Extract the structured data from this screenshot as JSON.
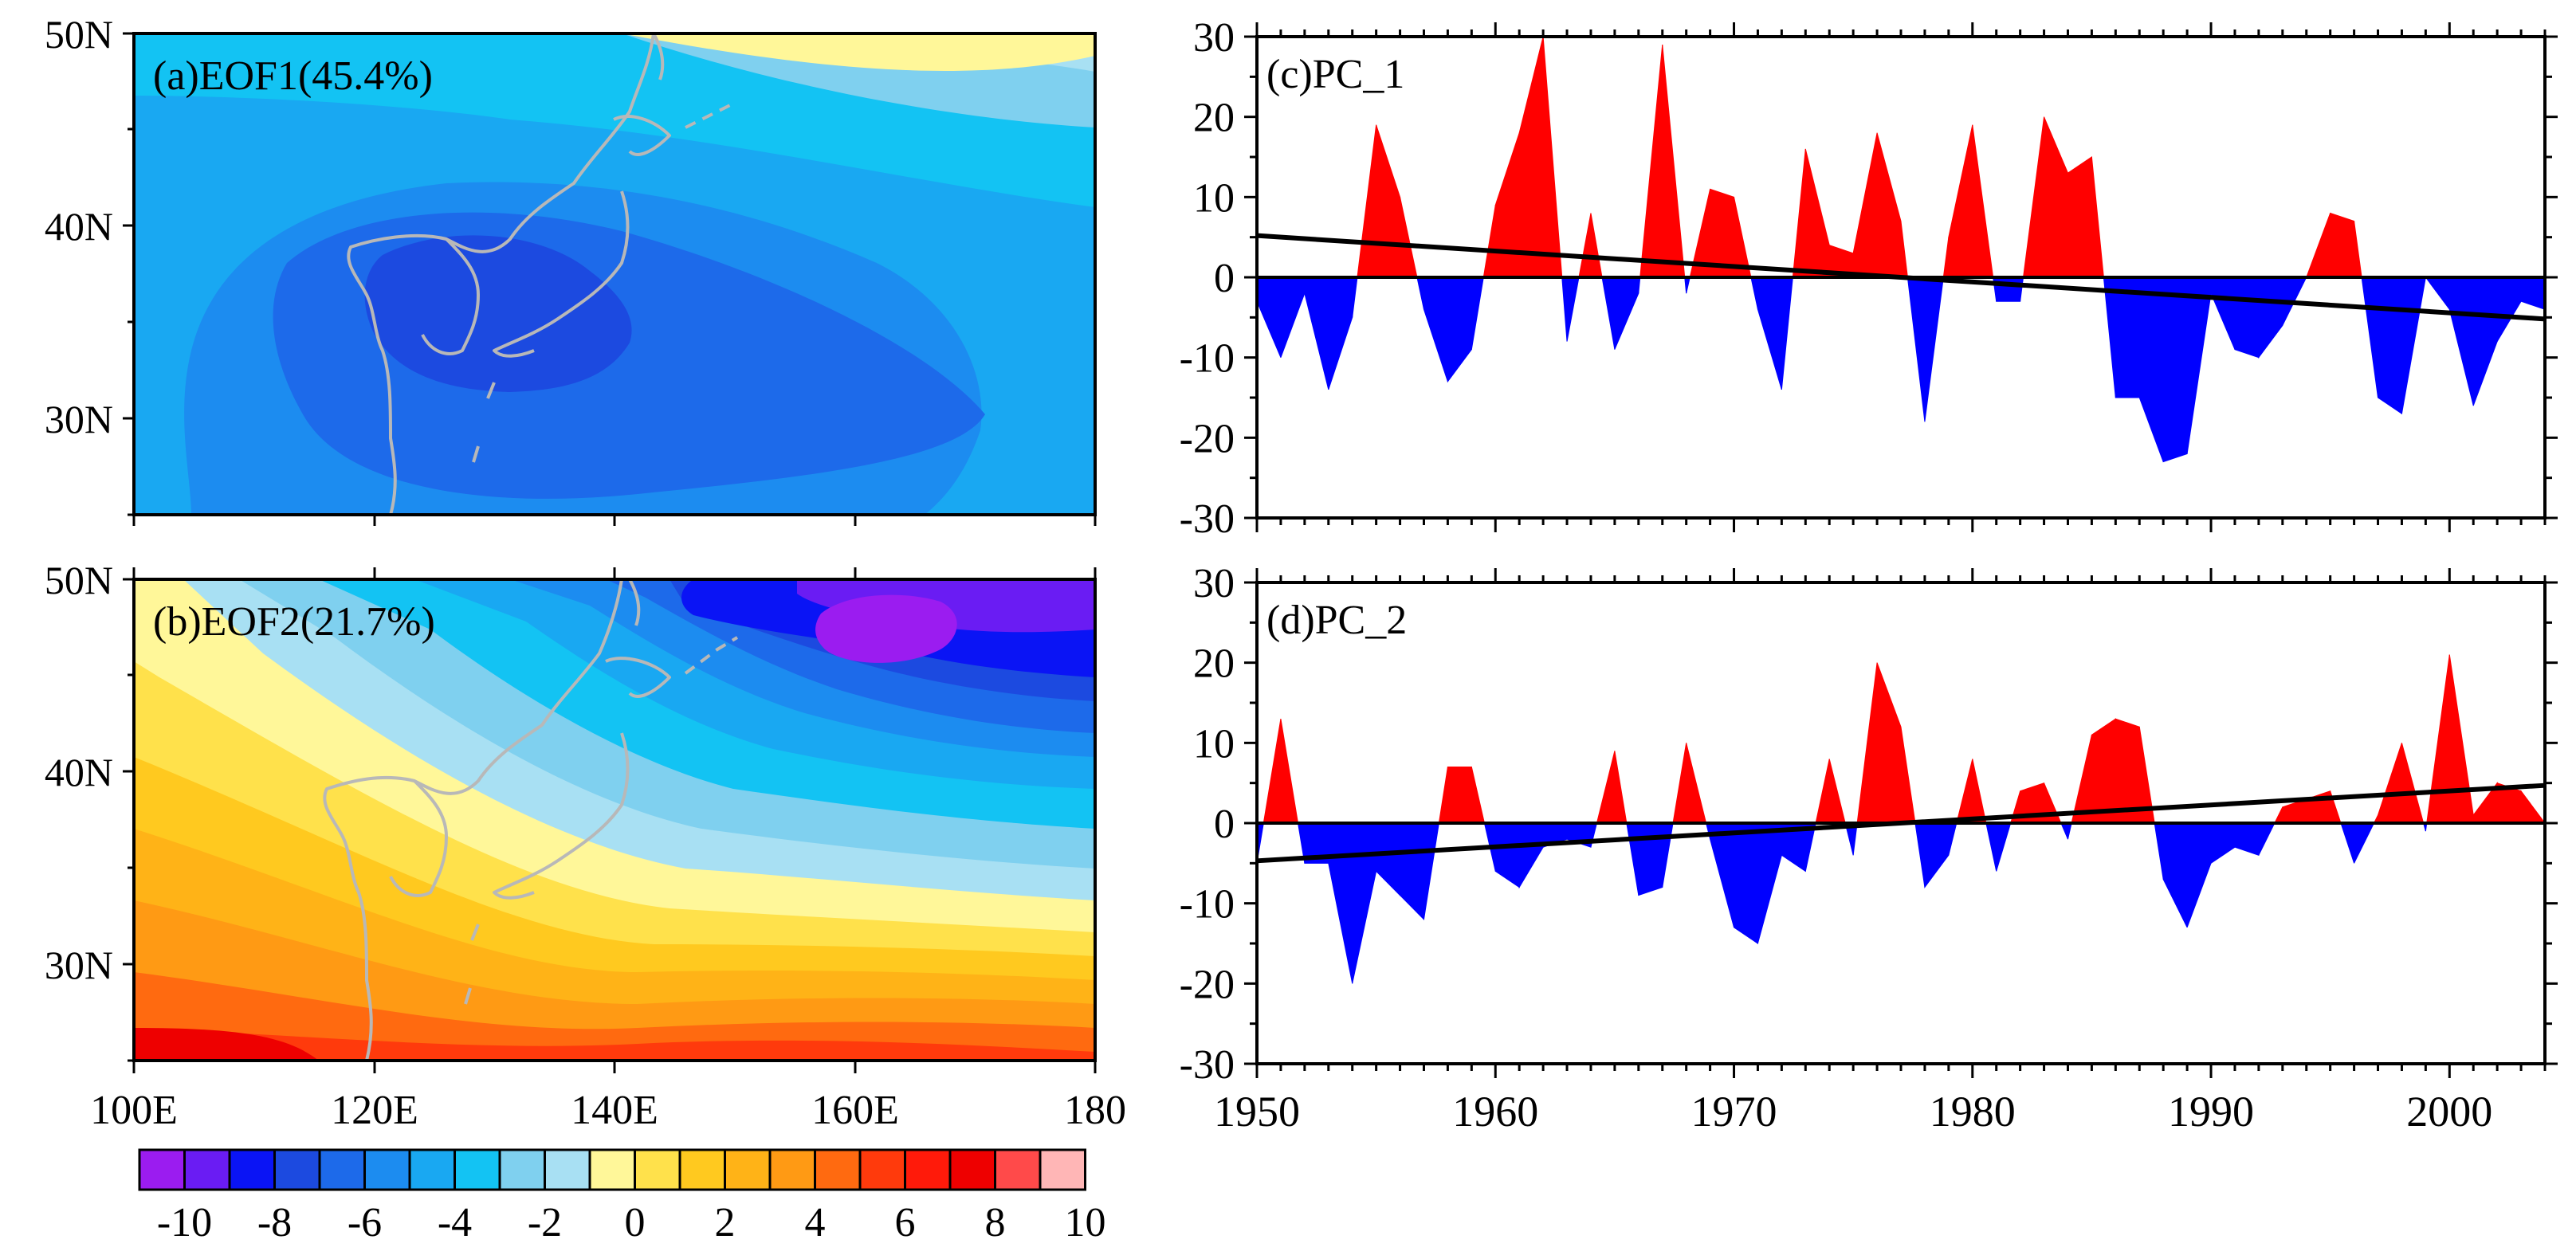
{
  "figure": {
    "colors": {
      "positive": "#ff0000",
      "negative": "#0000ff",
      "trend": "#000000",
      "coast": "#b8b8b8"
    },
    "colorbar": {
      "colors": [
        "#9b1cf0",
        "#6a1cf3",
        "#0a14f5",
        "#1c4ae0",
        "#1d6aea",
        "#1c8cf0",
        "#19a8f2",
        "#13c3f3",
        "#7fd0ef",
        "#a8e0f3",
        "#fff799",
        "#ffe14b",
        "#ffc91f",
        "#ffb317",
        "#ff9a14",
        "#ff6a10",
        "#ff3a0c",
        "#ff1a0a",
        "#ee0000",
        "#ff4a4a",
        "#ffb6b6"
      ],
      "labels": [
        "-10",
        "-8",
        "-6",
        "-4",
        "-2",
        "0",
        "2",
        "4",
        "6",
        "8",
        "10"
      ]
    },
    "maps": [
      {
        "id": "eof1",
        "title": "(a)EOF1(45.4%)",
        "lat_labels": [
          "50N",
          "40N",
          "30N"
        ],
        "lon_labels": [],
        "levels": [
          -5,
          -4,
          -3,
          -2,
          -1,
          0,
          1
        ]
      },
      {
        "id": "eof2",
        "title": "(b)EOF2(21.7%)",
        "lat_labels": [
          "50N",
          "40N",
          "30N"
        ],
        "lon_labels": [
          "100E",
          "120E",
          "140E",
          "160E",
          "180"
        ],
        "levels": [
          -10,
          -9,
          -8,
          -7,
          -6,
          -5,
          -4,
          -3,
          -2,
          -1,
          0,
          1,
          2,
          3,
          4,
          5,
          6,
          7
        ]
      }
    ]
  },
  "chart_data": [
    {
      "type": "area",
      "title": "(c)PC_1",
      "ylim": [
        -30,
        30
      ],
      "yticks": [
        "30",
        "20",
        "10",
        "0",
        "-10",
        "-20",
        "-30"
      ],
      "xlim": [
        1950,
        2004
      ],
      "xticks": [],
      "years": [
        1950,
        1951,
        1952,
        1953,
        1954,
        1955,
        1956,
        1957,
        1958,
        1959,
        1960,
        1961,
        1962,
        1963,
        1964,
        1965,
        1966,
        1967,
        1968,
        1969,
        1970,
        1971,
        1972,
        1973,
        1974,
        1975,
        1976,
        1977,
        1978,
        1979,
        1980,
        1981,
        1982,
        1983,
        1984,
        1985,
        1986,
        1987,
        1988,
        1989,
        1990,
        1991,
        1992,
        1993,
        1994,
        1995,
        1996,
        1997,
        1998,
        1999,
        2000,
        2001,
        2002,
        2003,
        2004
      ],
      "values": [
        -3,
        -10,
        -2,
        -14,
        -5,
        19,
        10,
        -4,
        -13,
        -9,
        9,
        18,
        30,
        -8,
        8,
        -9,
        -2,
        29,
        -2,
        11,
        10,
        -4,
        -14,
        16,
        4,
        3,
        18,
        7,
        -18,
        5,
        19,
        -3,
        -3,
        20,
        13,
        15,
        -15,
        -15,
        -23,
        -22,
        -2,
        -9,
        -10,
        -6,
        0,
        8,
        7,
        -15,
        -17,
        0,
        -4,
        -16,
        -8,
        -3,
        -4
      ],
      "trend": [
        5.2,
        -5.2
      ]
    },
    {
      "type": "area",
      "title": "(d)PC_2",
      "ylim": [
        -30,
        30
      ],
      "yticks": [
        "30",
        "20",
        "10",
        "0",
        "-10",
        "-20",
        "-30"
      ],
      "xlim": [
        1950,
        2004
      ],
      "xticks": [
        "1950",
        "1960",
        "1970",
        "1980",
        "1990",
        "2000"
      ],
      "years": [
        1950,
        1951,
        1952,
        1953,
        1954,
        1955,
        1956,
        1957,
        1958,
        1959,
        1960,
        1961,
        1962,
        1963,
        1964,
        1965,
        1966,
        1967,
        1968,
        1969,
        1970,
        1971,
        1972,
        1973,
        1974,
        1975,
        1976,
        1977,
        1978,
        1979,
        1980,
        1981,
        1982,
        1983,
        1984,
        1985,
        1986,
        1987,
        1988,
        1989,
        1990,
        1991,
        1992,
        1993,
        1994,
        1995,
        1996,
        1997,
        1998,
        1999,
        2000,
        2001,
        2002,
        2003,
        2004
      ],
      "values": [
        -5,
        13,
        -5,
        -5,
        -20,
        -6,
        -9,
        -12,
        7,
        7,
        -6,
        -8,
        -3,
        -2,
        -3,
        9,
        -9,
        -8,
        10,
        -2,
        -13,
        -15,
        -4,
        -6,
        8,
        -4,
        20,
        12,
        -8,
        -4,
        8,
        -6,
        4,
        5,
        -2,
        11,
        13,
        12,
        -7,
        -13,
        -5,
        -3,
        -4,
        2,
        3,
        4,
        -5,
        1,
        10,
        -1,
        21,
        1,
        5,
        4,
        0
      ],
      "trend": [
        -4.7,
        4.7
      ]
    }
  ]
}
